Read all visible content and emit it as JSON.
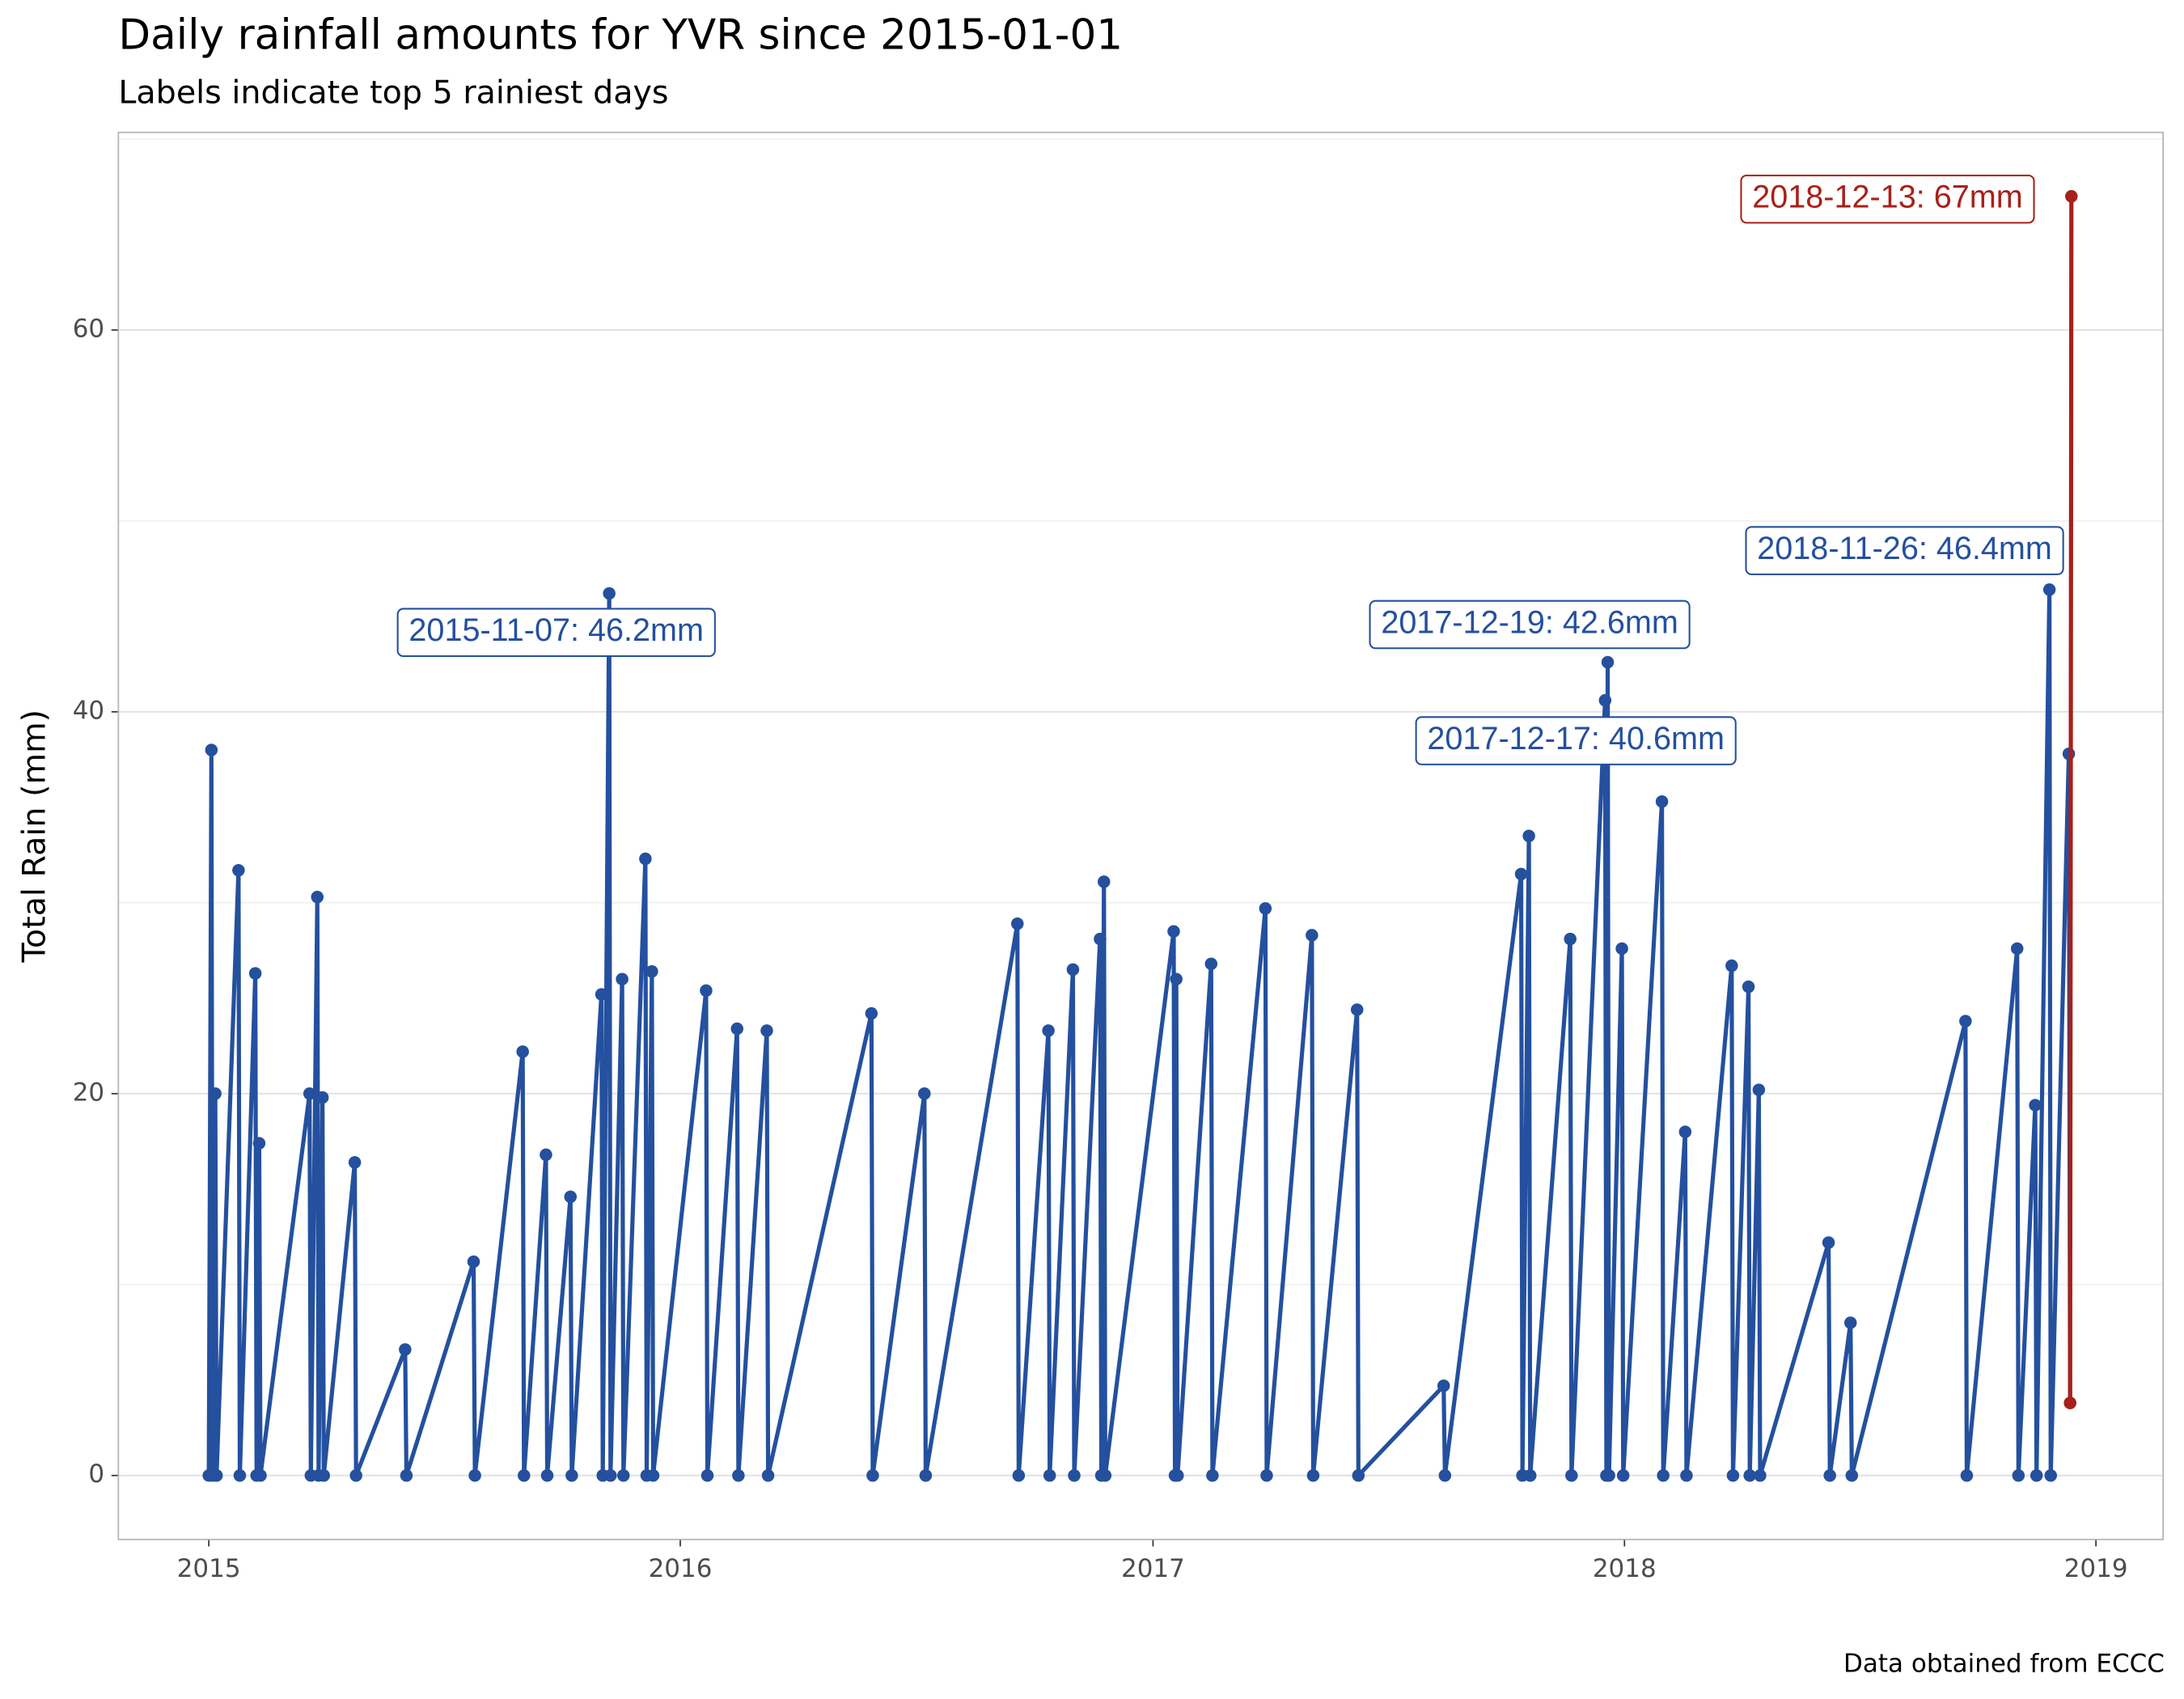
{
  "chart_data": {
    "type": "line",
    "title": "Daily rainfall amounts for YVR since 2015-01-01",
    "subtitle": "Labels indicate top 5 rainiest days",
    "y_label": "Total Rain (mm)",
    "caption": "Data obtained from ECCC",
    "xlim": [
      "2014-10-23",
      "2019-02-22"
    ],
    "xticks": [
      {
        "value": "2015-01-01",
        "label": "2015"
      },
      {
        "value": "2016-01-01",
        "label": "2016"
      },
      {
        "value": "2017-01-01",
        "label": "2017"
      },
      {
        "value": "2018-01-01",
        "label": "2018"
      },
      {
        "value": "2019-01-01",
        "label": "2019"
      }
    ],
    "ylim": [
      -3.35,
      70.35
    ],
    "yticks": [
      0,
      20,
      40,
      60
    ],
    "yticks_minor": [
      10,
      30,
      50,
      70
    ],
    "grid": true,
    "series": [
      {
        "color": "#24509e",
        "x": [
          "2015-01-01",
          "2015-01-03",
          "2015-01-04",
          "2015-01-06",
          "2015-01-07",
          "2015-01-24",
          "2015-01-25",
          "2015-02-06",
          "2015-02-07",
          "2015-02-09",
          "2015-02-10",
          "2015-03-20",
          "2015-03-21",
          "2015-03-26",
          "2015-03-27",
          "2015-03-30",
          "2015-03-31",
          "2015-04-24",
          "2015-04-25",
          "2015-06-02",
          "2015-06-03",
          "2015-07-25",
          "2015-07-26",
          "2015-09-01",
          "2015-09-02",
          "2015-09-19",
          "2015-09-20",
          "2015-10-08",
          "2015-10-09",
          "2015-11-01",
          "2015-11-02",
          "2015-11-07",
          "2015-11-08",
          "2015-11-17",
          "2015-11-18",
          "2015-12-05",
          "2015-12-06",
          "2015-12-10",
          "2015-12-11",
          "2016-01-21",
          "2016-01-22",
          "2016-02-14",
          "2016-02-15",
          "2016-03-08",
          "2016-03-09",
          "2016-05-28",
          "2016-05-29",
          "2016-07-08",
          "2016-07-09",
          "2016-09-18",
          "2016-09-19",
          "2016-10-12",
          "2016-10-13",
          "2016-10-31",
          "2016-11-01",
          "2016-11-21",
          "2016-11-22",
          "2016-11-24",
          "2016-11-25",
          "2017-01-17",
          "2017-01-18",
          "2017-01-19",
          "2017-01-20",
          "2017-02-15",
          "2017-02-16",
          "2017-03-29",
          "2017-03-30",
          "2017-05-04",
          "2017-05-05",
          "2017-06-08",
          "2017-06-09",
          "2017-08-14",
          "2017-08-15",
          "2017-10-13",
          "2017-10-14",
          "2017-10-19",
          "2017-10-20",
          "2017-11-20",
          "2017-11-21",
          "2017-12-17",
          "2017-12-18",
          "2017-12-19",
          "2017-12-20",
          "2017-12-30",
          "2017-12-31",
          "2018-01-30",
          "2018-01-31",
          "2018-02-17",
          "2018-02-18",
          "2018-03-25",
          "2018-03-26",
          "2018-04-07",
          "2018-04-08",
          "2018-04-15",
          "2018-04-16",
          "2018-06-08",
          "2018-06-09",
          "2018-06-25",
          "2018-06-26",
          "2018-09-22",
          "2018-09-23",
          "2018-11-01",
          "2018-11-02",
          "2018-11-15",
          "2018-11-16",
          "2018-11-26",
          "2018-11-27",
          "2018-12-11",
          "2018-12-12"
        ],
        "values": [
          0,
          38,
          0,
          20,
          0,
          31.7,
          0,
          26.3,
          0,
          17.4,
          0,
          20,
          0,
          30.3,
          0,
          19.8,
          0,
          16.4,
          0,
          6.6,
          0,
          11.2,
          0,
          22.2,
          0,
          16.8,
          0,
          14.6,
          0,
          25.2,
          0,
          46.2,
          0,
          26,
          0,
          32.3,
          0,
          26.4,
          0,
          25.4,
          0,
          23.4,
          0,
          23.3,
          0,
          24.2,
          0,
          20,
          0,
          28.9,
          0,
          23.3,
          0,
          26.5,
          0,
          28.1,
          0,
          31.1,
          0,
          28.5,
          0,
          26,
          0,
          26.8,
          0,
          29.7,
          0,
          28.3,
          0,
          24.4,
          0,
          4.7,
          0,
          31.5,
          0,
          33.5,
          0,
          28.1,
          0,
          40.6,
          0,
          42.6,
          0,
          27.6,
          0,
          35.3,
          0,
          18,
          0,
          26.7,
          0,
          25.6,
          0,
          20.2,
          0,
          12.2,
          0,
          8,
          0,
          23.8,
          0,
          27.6,
          0,
          19.4,
          0,
          46.4,
          0,
          37.8,
          3.8
        ]
      },
      {
        "color": "#a8201a",
        "x": [
          "2018-12-12",
          "2018-12-13"
        ],
        "values": [
          3.8,
          67
        ]
      }
    ],
    "annotations": [
      {
        "text": "2015-11-07: 46.2mm",
        "x": "2015-11-07",
        "y": 46.2,
        "color": "#24509e"
      },
      {
        "text": "2017-12-19: 42.6mm",
        "x": "2017-12-19",
        "y": 42.6,
        "color": "#24509e"
      },
      {
        "text": "2017-12-17: 40.6mm",
        "x": "2017-12-17",
        "y": 40.6,
        "color": "#24509e"
      },
      {
        "text": "2018-11-26: 46.4mm",
        "x": "2018-11-26",
        "y": 46.4,
        "color": "#24509e"
      },
      {
        "text": "2018-12-13: 67mm",
        "x": "2018-12-13",
        "y": 67,
        "color": "#a8201a"
      }
    ]
  }
}
